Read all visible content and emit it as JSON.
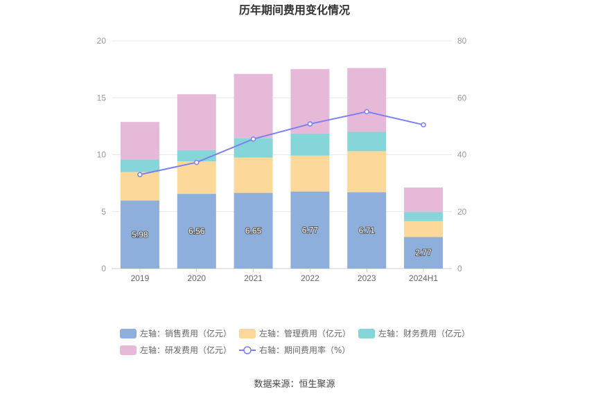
{
  "chart_data": {
    "type": "bar",
    "title": "历年期间费用变化情况",
    "categories": [
      "2019",
      "2020",
      "2021",
      "2022",
      "2023",
      "2024H1"
    ],
    "stacked": true,
    "y_left": {
      "ylim": [
        0,
        20
      ],
      "ticks": [
        "0",
        "5",
        "10",
        "15",
        "20"
      ]
    },
    "y_right": {
      "ylim": [
        0,
        80
      ],
      "ticks": [
        "0",
        "20",
        "40",
        "60",
        "80"
      ]
    },
    "series": [
      {
        "name": "左轴：销售费用（亿元）",
        "axis": "left",
        "type": "bar",
        "color": "#8eaedb",
        "values": [
          5.98,
          6.56,
          6.65,
          6.77,
          6.71,
          2.77
        ],
        "labels": [
          "5.98",
          "6.56",
          "6.65",
          "6.77",
          "6.71",
          "2.77"
        ]
      },
      {
        "name": "左轴：管理费用（亿元）",
        "axis": "left",
        "type": "bar",
        "color": "#fdd89b",
        "values": [
          2.5,
          2.85,
          3.1,
          3.15,
          3.6,
          1.4
        ]
      },
      {
        "name": "左轴：财务费用（亿元）",
        "axis": "left",
        "type": "bar",
        "color": "#86d5d8",
        "values": [
          1.1,
          1.0,
          1.7,
          1.95,
          1.7,
          0.8
        ]
      },
      {
        "name": "左轴：研发费用（亿元）",
        "axis": "left",
        "type": "bar",
        "color": "#e6b9d9",
        "values": [
          3.3,
          4.9,
          5.65,
          5.65,
          5.6,
          2.15
        ]
      },
      {
        "name": "右轴：期间费用率（%）",
        "axis": "right",
        "type": "line",
        "color": "#7b7ff0",
        "values": [
          33.0,
          37.3,
          45.5,
          50.8,
          55.1,
          50.5
        ]
      }
    ],
    "grid": true,
    "legend_position": "bottom"
  },
  "source": "数据来源：恒生聚源"
}
